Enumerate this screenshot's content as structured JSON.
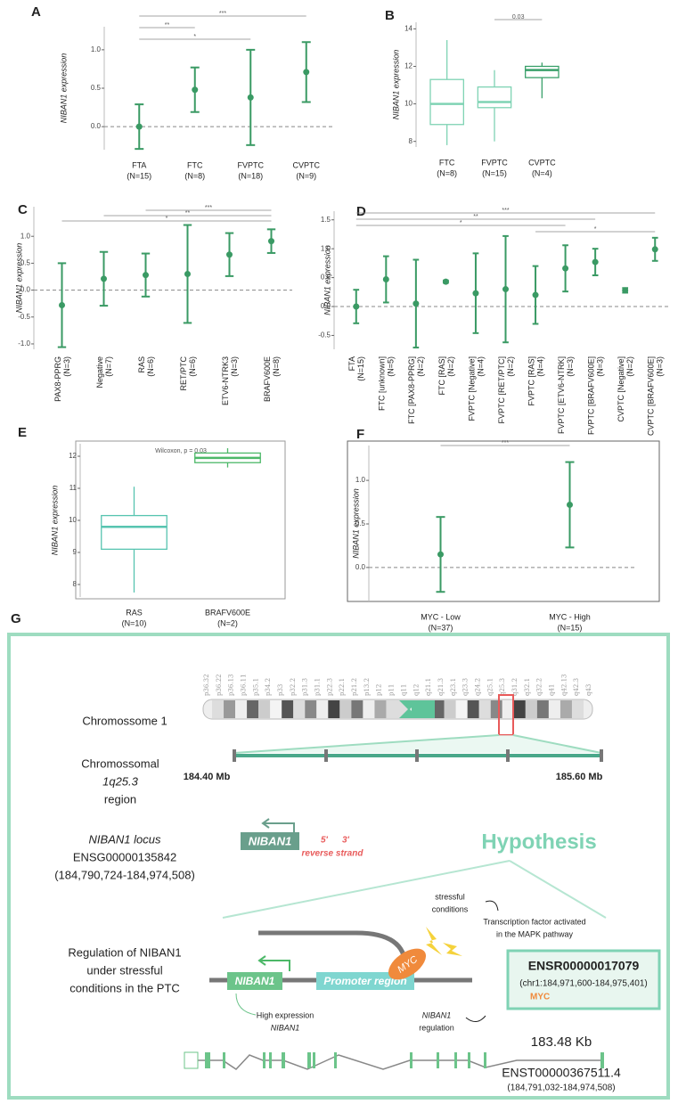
{
  "chart_data": [
    {
      "panel": "A",
      "type": "errorbar",
      "ylabel": "NIBAN1 expression",
      "categories": [
        "FTA",
        "FTC",
        "FVPTC",
        "CVPTC"
      ],
      "n_labels": [
        "(N=15)",
        "(N=8)",
        "(N=18)",
        "(N=9)"
      ],
      "values": [
        0,
        0.48,
        0.38,
        0.71
      ],
      "errors": [
        0.29,
        0.29,
        0.62,
        0.39
      ],
      "color": "#3a9a64",
      "ylim": [
        -0.3,
        1.3
      ],
      "yticks": [
        {
          "value": 0,
          "label": "0.0"
        },
        {
          "value": 0.5,
          "label": "0.5"
        },
        {
          "value": 1,
          "label": "1.0"
        }
      ],
      "hline": 0,
      "brackets": [
        {
          "groups": [
            "FTA",
            "CVPTC"
          ],
          "label": "***"
        },
        {
          "groups": [
            "FTA",
            "FTC"
          ],
          "label": "**"
        },
        {
          "groups": [
            "FTA",
            "FVPTC"
          ],
          "label": "*"
        }
      ]
    },
    {
      "panel": "B",
      "type": "box",
      "ylabel": "NIBAN1 expression",
      "categories": [
        "FTC",
        "FVPTC",
        "CVPTC"
      ],
      "n_labels": [
        "(N=8)",
        "(N=15)",
        "(N=4)"
      ],
      "whisker_low": [
        7.8,
        8.0,
        10.3
      ],
      "q1": [
        8.9,
        9.8,
        11.4
      ],
      "median": [
        10.0,
        10.1,
        11.8
      ],
      "q3": [
        11.3,
        10.9,
        12.0
      ],
      "whisker_high": [
        13.4,
        11.8,
        12.2
      ],
      "colors": [
        "#7fd3b4",
        "#7fd3b4",
        "#3aa06a"
      ],
      "ylim": [
        7.7,
        14.35
      ],
      "yticks": [
        8,
        10,
        12,
        14
      ],
      "brackets": [
        {
          "groups": [
            "FVPTC",
            "CVPTC"
          ],
          "label": "0.03"
        }
      ]
    },
    {
      "panel": "C",
      "type": "errorbar",
      "ylabel": "NIBAN1 expression",
      "categories": [
        "PAX8-PPRG",
        "Negative",
        "RAS",
        "RET/PTC",
        "ETV6-NTRK3",
        "BRAFV600E"
      ],
      "n_labels": [
        "(N=3)",
        "(N=7)",
        "(N=6)",
        "(N=6)",
        "(N=3)",
        "(N=8)"
      ],
      "values": [
        -0.28,
        0.21,
        0.28,
        0.3,
        0.66,
        0.91
      ],
      "errors": [
        0.78,
        0.5,
        0.4,
        0.91,
        0.4,
        0.22
      ],
      "color": "#3a9a64",
      "ylim": [
        -1.1,
        1.55
      ],
      "yticks": [
        {
          "value": -1,
          "label": "-1.0"
        },
        {
          "value": -0.5,
          "label": "-0.5"
        },
        {
          "value": 0,
          "label": "0.0"
        },
        {
          "value": 0.5,
          "label": "0.5"
        },
        {
          "value": 1,
          "label": "1.0"
        }
      ],
      "hline": 0,
      "brackets": [
        {
          "groups": [
            "RAS",
            "BRAFV600E"
          ],
          "label": "***"
        },
        {
          "groups": [
            "Negative",
            "BRAFV600E"
          ],
          "label": "**"
        },
        {
          "groups": [
            "PAX8-PPRG",
            "BRAFV600E"
          ],
          "label": "*"
        }
      ]
    },
    {
      "panel": "D",
      "type": "errorbar",
      "ylabel": "NIBAN1 expression",
      "categories": [
        "FTA",
        "FTC [unknown]",
        "FTC [PAX8-PPRG]",
        "FTC [RAS]",
        "FVPTC [Negative]",
        "FVPTC [RET/PTC]",
        "FVPTC [RAS]",
        "FVPTC [ETV6-NTRK]",
        "FVPTC [BRAFV600E]",
        "CVPTC [Negative]",
        "CVPTC [BRAFV600E]"
      ],
      "n_labels": [
        "(N=15)",
        "(N=5)",
        "(N=2)",
        "(N=2)",
        "(N=4)",
        "(N=2)",
        "(N=4)",
        "(N=3)",
        "(N=3)",
        "(N=2)",
        "(N=3)"
      ],
      "values": [
        0,
        0.47,
        0.05,
        0.43,
        0.23,
        0.3,
        0.2,
        0.66,
        0.77,
        0.28,
        0.99
      ],
      "errors": [
        0.29,
        0.4,
        0.76,
        0.02,
        0.69,
        0.92,
        0.5,
        0.4,
        0.23,
        0.04,
        0.2
      ],
      "color": "#3a9a64",
      "ylim": [
        -0.74,
        1.65
      ],
      "yticks": [
        {
          "value": -0.5,
          "label": "-0.5"
        },
        {
          "value": 0,
          "label": "0.0"
        },
        {
          "value": 0.5,
          "label": "0.5"
        },
        {
          "value": 1,
          "label": "1.0"
        },
        {
          "value": 1.5,
          "label": "1.5"
        }
      ],
      "hline": 0,
      "brackets": [
        {
          "groups": [
            "FTA",
            "CVPTC [BRAFV600E]"
          ],
          "label": "***"
        },
        {
          "groups": [
            "FTA",
            "FVPTC [BRAFV600E]"
          ],
          "label": "**"
        },
        {
          "groups": [
            "FTA",
            "FVPTC [ETV6-NTRK]"
          ],
          "label": "*"
        },
        {
          "groups": [
            "FVPTC [RAS]",
            "CVPTC [BRAFV600E]"
          ],
          "label": "*"
        }
      ]
    },
    {
      "panel": "E",
      "type": "box",
      "ylabel": "NIBAN1 expression",
      "annotation": "Wilcoxon, p = 0.03",
      "categories": [
        "RAS",
        "BRAFV600E"
      ],
      "n_labels": [
        "(N=10)",
        "(N=2)"
      ],
      "whisker_low": [
        7.75,
        11.65
      ],
      "q1": [
        9.1,
        11.8
      ],
      "median": [
        9.8,
        11.95
      ],
      "q3": [
        10.15,
        12.1
      ],
      "whisker_high": [
        11.05,
        12.25
      ],
      "colors": [
        "#57c4b0",
        "#4cb868"
      ],
      "ylim": [
        7.61,
        12.39
      ],
      "yticks": [
        8,
        9,
        10,
        11,
        12
      ]
    },
    {
      "panel": "F",
      "type": "errorbar",
      "ylabel": "NIBAN1 expression",
      "categories": [
        "MYC - Low",
        "MYC - High"
      ],
      "n_labels": [
        "(N=37)",
        "(N=15)"
      ],
      "values": [
        0.15,
        0.72
      ],
      "errors": [
        0.43,
        0.49
      ],
      "color": "#3a9a64",
      "ylim": [
        -0.39,
        1.4
      ],
      "yticks": [
        {
          "value": 0,
          "label": "0.0"
        },
        {
          "value": 0.5,
          "label": "0.5"
        },
        {
          "value": 1,
          "label": "1.0"
        }
      ],
      "hline": 0,
      "brackets": [
        {
          "groups": [
            "MYC - Low",
            "MYC - High"
          ],
          "label": "***"
        }
      ]
    }
  ],
  "diagram": {
    "panel": "G",
    "chromosome_label": "Chromossome 1",
    "chromosome_bands": [
      "p36.32",
      "p36.22",
      "p36.13",
      "p36.11",
      "p35.1",
      "p34.2",
      "p33",
      "p32.2",
      "p31.3",
      "p31.1",
      "p22.3",
      "p22.1",
      "p21.2",
      "p13.2",
      "p12",
      "p11",
      "q11",
      "q12",
      "q21.1",
      "q21.3",
      "q23.1",
      "q23.3",
      "q24.2",
      "q25.1",
      "q25.3",
      "q31.2",
      "q32.1",
      "q32.2",
      "q41",
      "q42.13",
      "q42.3",
      "q43"
    ],
    "region_label": [
      "Chromossomal",
      "1q25.3",
      "region"
    ],
    "region_start": "184.40 Mb",
    "region_end": "185.60 Mb",
    "locus_label": [
      "NIBAN1 locus",
      "ENSG00000135842",
      "(184,790,724-184,974,508)"
    ],
    "gene": "NIBAN1",
    "strand": [
      "5'",
      "3'",
      "reverse strand"
    ],
    "hypothesis": "Hypothesis",
    "regulation_label": [
      "Regulation of NIBAN1",
      "under stressful",
      "conditions in the PTC"
    ],
    "stress": [
      "stressful",
      "conditions"
    ],
    "tf_note": [
      "Transcription factor activated",
      "in the MAPK pathway"
    ],
    "promoter": "Promoter region",
    "tf": "MYC",
    "regulatory_element": {
      "id": "ENSR00000017079",
      "coords": "(chr1:184,971,600-184,975,401)",
      "tf": "MYC"
    },
    "high_expression": [
      "High expression",
      "NIBAN1"
    ],
    "regulation_note": [
      "NIBAN1",
      "regulation"
    ],
    "transcript_length": "183.48 Kb",
    "transcript": {
      "id": "ENST00000367511.4",
      "coords": "(184,791,032-184,974,508)"
    }
  }
}
